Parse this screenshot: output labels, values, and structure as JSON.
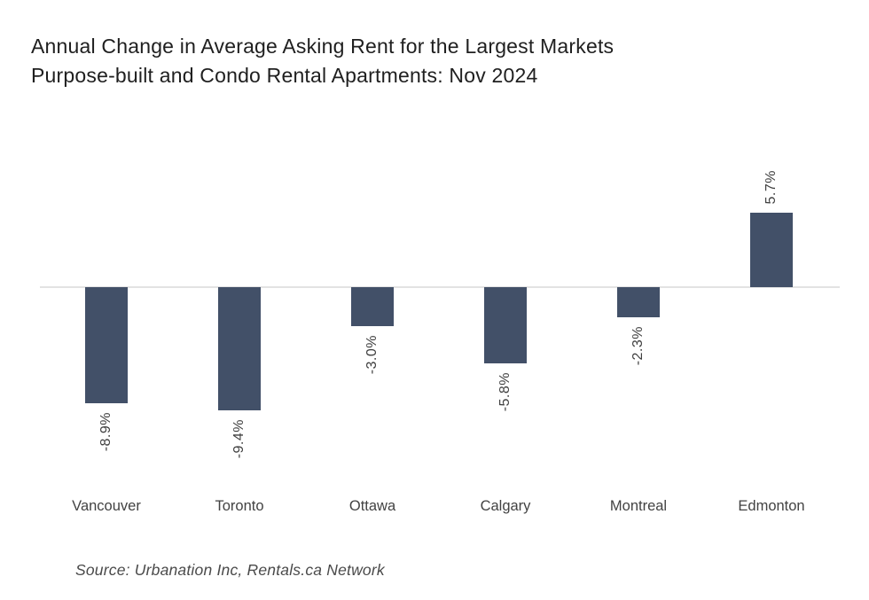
{
  "title": "Annual Change in Average Asking Rent for the Largest Markets\nPurpose-built and Condo Rental Apartments: Nov 2024",
  "source_note": "Source: Urbanation Inc, Rentals.ca Network",
  "colors": {
    "bar": "#425068",
    "baseline": "#e3e3e3",
    "title_text": "#1f1f1f",
    "value_label_text": "#3f3f3f",
    "category_label_text": "#424242",
    "source_text": "#4a4a4a",
    "background": "#ffffff"
  },
  "chart_data": {
    "type": "bar",
    "title": "Annual Change in Average Asking Rent for the Largest Markets Purpose-built and Condo Rental Apartments: Nov 2024",
    "categories": [
      "Vancouver",
      "Toronto",
      "Ottawa",
      "Calgary",
      "Montreal",
      "Edmonton"
    ],
    "values": [
      -8.9,
      -9.4,
      -3.0,
      -5.8,
      -2.3,
      5.7
    ],
    "value_labels": [
      "-8.9%",
      "-9.4%",
      "-3.0%",
      "-5.8%",
      "-2.3%",
      "5.7%"
    ],
    "xlabel": "",
    "ylabel": "",
    "ylim": [
      -10.5,
      7
    ],
    "grid": false,
    "legend": false,
    "value_label_rotation": -90,
    "annotation": "Source: Urbanation Inc, Rentals.ca Network"
  }
}
